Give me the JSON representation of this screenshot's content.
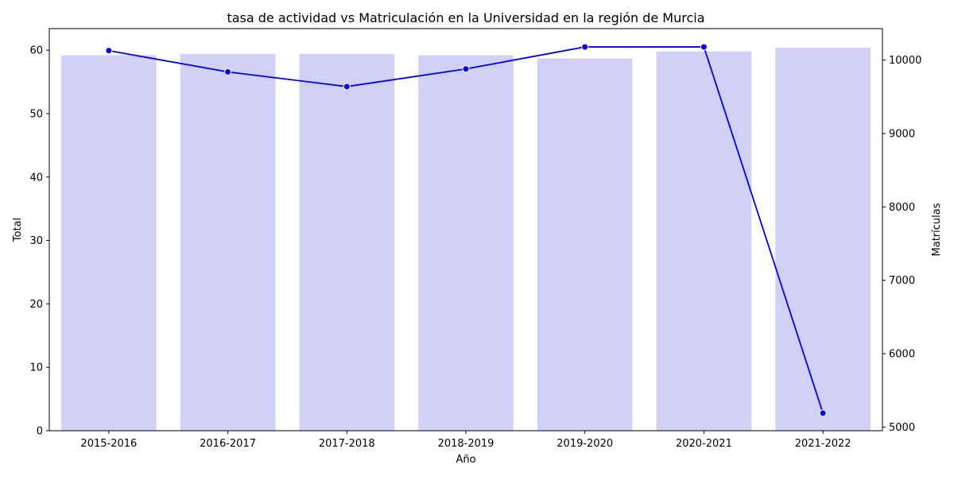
{
  "chart_data": {
    "type": "bar",
    "title": "tasa de actividad vs Matriculación en la Universidad en la región de Murcia",
    "xlabel": "Año",
    "ylabel": "Total",
    "y2label": "Matrículas",
    "categories": [
      "2015-2016",
      "2016-2017",
      "2017-2018",
      "2018-2019",
      "2019-2020",
      "2020-2021",
      "2021-2022"
    ],
    "ylim": [
      0,
      63.4
    ],
    "y2lim": [
      4950,
      10430
    ],
    "yticks": [
      0,
      10,
      20,
      30,
      40,
      50,
      60
    ],
    "y2ticks": [
      5000,
      6000,
      7000,
      8000,
      9000,
      10000
    ],
    "grid": false,
    "series": [
      {
        "type": "bar",
        "axis": "left",
        "color": "#d1d1f8",
        "values": [
          59.2,
          59.4,
          59.4,
          59.2,
          58.7,
          59.8,
          60.4
        ]
      },
      {
        "type": "line",
        "axis": "right",
        "color": "#0000ee",
        "marker": "circle",
        "values": [
          10130,
          9840,
          9640,
          9880,
          10180,
          10180,
          5190
        ]
      }
    ]
  }
}
